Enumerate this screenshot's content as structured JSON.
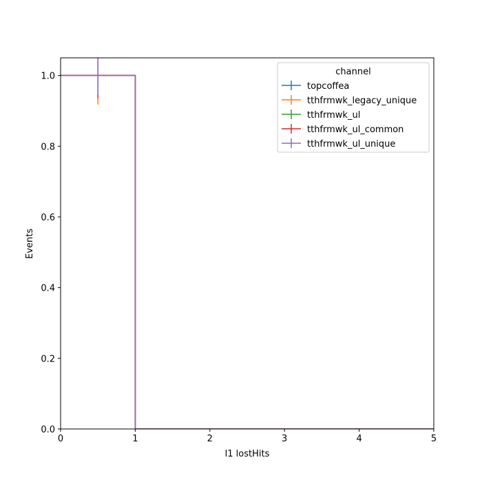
{
  "chart_data": {
    "type": "line",
    "xlabel": "l1 lostHits",
    "ylabel": "Events",
    "xlim": [
      0,
      5
    ],
    "ylim": [
      0,
      1.05
    ],
    "x_ticks": [
      "0",
      "1",
      "2",
      "3",
      "4",
      "5"
    ],
    "y_ticks": [
      "0.0",
      "0.2",
      "0.4",
      "0.6",
      "0.8",
      "1.0"
    ],
    "grid": false,
    "legend": {
      "title": "channel",
      "placement": "top-right"
    },
    "bin_edges": [
      0,
      1,
      2,
      3,
      4,
      5
    ],
    "bin_centers": [
      0.5,
      1.5,
      2.5,
      3.5,
      4.5
    ],
    "series": [
      {
        "name": "topcoffea",
        "color": "#1f77b4",
        "values": [
          1.0,
          0,
          0,
          0,
          0
        ],
        "errors": [
          0.0,
          0,
          0,
          0,
          0
        ]
      },
      {
        "name": "tthfrmwk_legacy_unique",
        "color": "#ff7f0e",
        "values": [
          1.0,
          0,
          0,
          0,
          0
        ],
        "errors": [
          0.082,
          0,
          0,
          0,
          0
        ]
      },
      {
        "name": "tthfrmwk_ul",
        "color": "#2ca02c",
        "values": [
          1.0,
          0,
          0,
          0,
          0
        ],
        "errors": [
          0.0,
          0,
          0,
          0,
          0
        ]
      },
      {
        "name": "tthfrmwk_ul_common",
        "color": "#d62728",
        "values": [
          1.0,
          0,
          0,
          0,
          0
        ],
        "errors": [
          0.064,
          0,
          0,
          0,
          0
        ]
      },
      {
        "name": "tthfrmwk_ul_unique",
        "color": "#9467bd",
        "values": [
          1.0,
          0,
          0,
          0,
          0
        ],
        "errors": [
          0.055,
          0,
          0,
          0,
          0
        ]
      }
    ]
  }
}
